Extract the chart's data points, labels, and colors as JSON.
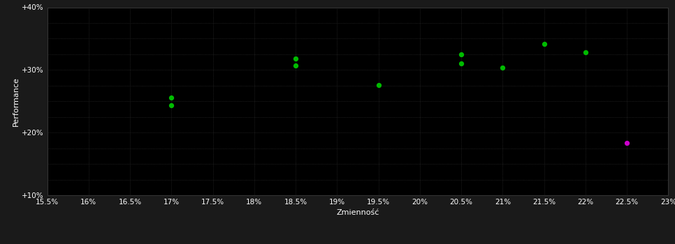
{
  "background_color": "#1a1a1a",
  "plot_bg_color": "#000000",
  "grid_color": "#333333",
  "text_color": "#ffffff",
  "xlabel": "Zmienność",
  "ylabel": "Performance",
  "xlim": [
    0.155,
    0.23
  ],
  "ylim": [
    0.1,
    0.4
  ],
  "xticks": [
    0.155,
    0.16,
    0.165,
    0.17,
    0.175,
    0.18,
    0.185,
    0.19,
    0.195,
    0.2,
    0.205,
    0.21,
    0.215,
    0.22,
    0.225,
    0.23
  ],
  "yticks": [
    0.1,
    0.2,
    0.3,
    0.4
  ],
  "yticks_minor": [
    0.1,
    0.125,
    0.15,
    0.175,
    0.2,
    0.225,
    0.25,
    0.275,
    0.3,
    0.325,
    0.35,
    0.375,
    0.4
  ],
  "green_points": [
    [
      0.17,
      0.256
    ],
    [
      0.17,
      0.244
    ],
    [
      0.185,
      0.318
    ],
    [
      0.185,
      0.307
    ],
    [
      0.195,
      0.276
    ],
    [
      0.205,
      0.325
    ],
    [
      0.205,
      0.31
    ],
    [
      0.21,
      0.304
    ],
    [
      0.215,
      0.342
    ],
    [
      0.22,
      0.328
    ]
  ],
  "magenta_points": [
    [
      0.225,
      0.183
    ]
  ],
  "green_color": "#00bb00",
  "magenta_color": "#cc00cc",
  "marker_size": 18,
  "font_size_axis_label": 8,
  "font_size_tick": 7.5
}
